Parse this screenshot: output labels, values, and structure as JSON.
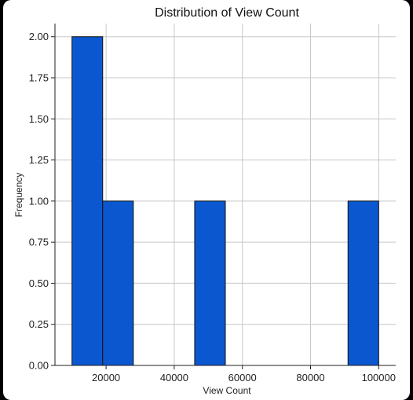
{
  "chart_data": {
    "type": "bar",
    "title": "Distribution of View Count",
    "xlabel": "View Count",
    "ylabel": "Frequency",
    "bar_color": "#0b57d0",
    "xlim": [
      5000,
      105000
    ],
    "ylim": [
      0,
      2.08
    ],
    "x_ticks": [
      20000,
      40000,
      60000,
      80000,
      100000
    ],
    "x_tick_labels": [
      "20000",
      "40000",
      "60000",
      "80000",
      "100000"
    ],
    "y_ticks": [
      0,
      0.25,
      0.5,
      0.75,
      1.0,
      1.25,
      1.5,
      1.75,
      2.0
    ],
    "y_tick_labels": [
      "0.00",
      "0.25",
      "0.50",
      "0.75",
      "1.00",
      "1.25",
      "1.50",
      "1.75",
      "2.00"
    ],
    "bins": [
      {
        "x0": 10000,
        "x1": 19000,
        "count": 2
      },
      {
        "x0": 19000,
        "x1": 28000,
        "count": 1
      },
      {
        "x0": 28000,
        "x1": 37000,
        "count": 0
      },
      {
        "x0": 37000,
        "x1": 46000,
        "count": 0
      },
      {
        "x0": 46000,
        "x1": 55000,
        "count": 1
      },
      {
        "x0": 55000,
        "x1": 64000,
        "count": 0
      },
      {
        "x0": 64000,
        "x1": 73000,
        "count": 0
      },
      {
        "x0": 73000,
        "x1": 82000,
        "count": 0
      },
      {
        "x0": 82000,
        "x1": 91000,
        "count": 0
      },
      {
        "x0": 91000,
        "x1": 100000,
        "count": 1
      }
    ],
    "grid": true
  }
}
